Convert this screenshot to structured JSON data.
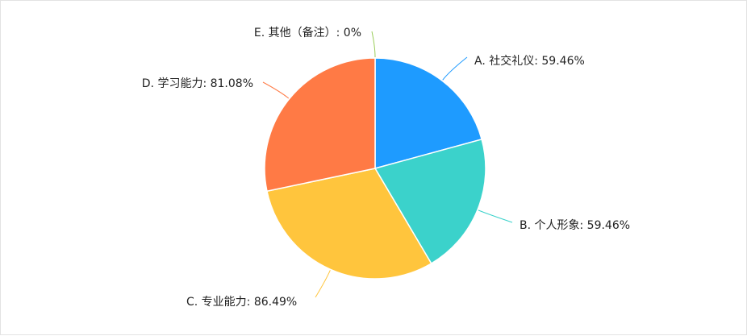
{
  "chart_data": {
    "type": "pie",
    "title": "",
    "slices": [
      {
        "name": "A. 社交礼仪",
        "label": "A. 社交礼仪: 59.46%",
        "value": 59.46,
        "color": "#1E9BFF"
      },
      {
        "name": "B. 个人形象",
        "label": "B. 个人形象: 59.46%",
        "value": 59.46,
        "color": "#3BD2CB"
      },
      {
        "name": "C. 专业能力",
        "label": "C. 专业能力: 86.49%",
        "value": 86.49,
        "color": "#FFC53D"
      },
      {
        "name": "D. 学习能力",
        "label": "D. 学习能力: 81.08%",
        "value": 81.08,
        "color": "#FF7A45"
      },
      {
        "name": "E. 其他（备注）",
        "label": "E. 其他（备注）: 0%",
        "value": 0,
        "color": "#9ACD5A"
      }
    ],
    "legend": "none"
  }
}
